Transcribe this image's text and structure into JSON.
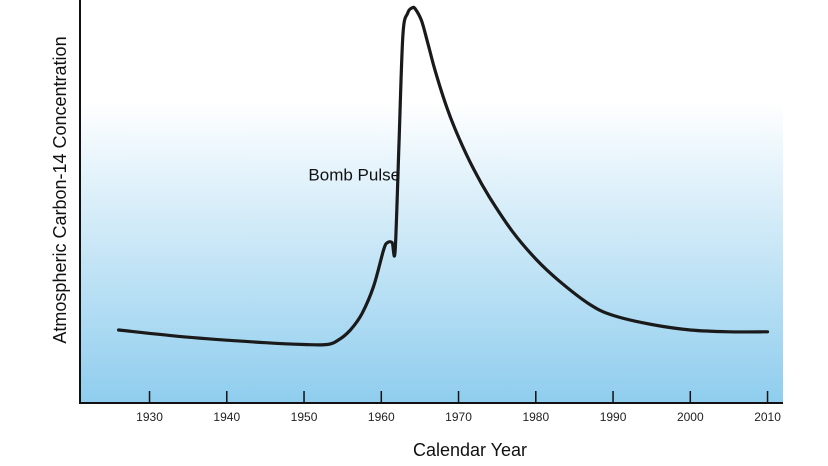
{
  "chart_data": {
    "type": "line",
    "title": "",
    "xlabel": "Calendar Year",
    "ylabel": "Atmospheric Carbon-14 Concentration",
    "xlim": [
      1921,
      2012
    ],
    "ylim": [
      0,
      100
    ],
    "x_ticks": [
      1930,
      1940,
      1950,
      1960,
      1970,
      1980,
      1990,
      2000,
      2010
    ],
    "y_ticks": [],
    "grid": false,
    "background_gradient": [
      "#ffffff",
      "#8fcdee"
    ],
    "line_color": "#1a1a1a",
    "annotations": [
      {
        "text": "Bomb Pulse",
        "x": 1956.5,
        "y": 52
      }
    ],
    "series": [
      {
        "x": [
          1926,
          1935,
          1945,
          1950,
          1953,
          1954.5,
          1956,
          1957.5,
          1959,
          1960.3,
          1960.8,
          1961.4,
          1961.8,
          1962.3,
          1962.8,
          1963.4,
          1964,
          1964.4,
          1965.2,
          1966,
          1967,
          1968.5,
          1970,
          1972,
          1974,
          1977,
          1980,
          1983,
          1987,
          1990,
          1995,
          2000,
          2005,
          2010
        ],
        "y": [
          11,
          9,
          7.5,
          7,
          7,
          8.3,
          11,
          15.5,
          23,
          33,
          35,
          35,
          33,
          63,
          92,
          98,
          99.5,
          99.2,
          96,
          90,
          82,
          72,
          64,
          55,
          47.5,
          38,
          30.5,
          24.5,
          18,
          15,
          12.5,
          11,
          10.5,
          10.5
        ]
      }
    ]
  }
}
